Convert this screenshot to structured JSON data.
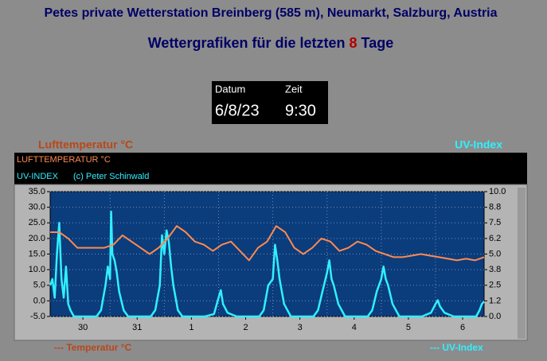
{
  "header": {
    "title": "Petes private Wetterstation Breinberg (585 m), Neumarkt, Salzburg, Austria",
    "subtitle_before": "Wettergrafiken für die letzten",
    "subtitle_days": "8",
    "subtitle_after": "Tage"
  },
  "datetime": {
    "date_label": "Datum",
    "time_label": "Zeit",
    "date": "6/8/23",
    "time": "9:30"
  },
  "chart_data": {
    "type": "line",
    "left_label": "Lufttemperatur °C",
    "right_label": "UV-Index",
    "credit": "(c) Peter Schinwald",
    "bottom_left_label": "--- Temperatur °C",
    "bottom_right_label": "--- UV-Index",
    "xlim": [
      0,
      192
    ],
    "xticks": [
      {
        "value": 14.5,
        "label": "30"
      },
      {
        "value": 38.5,
        "label": "31"
      },
      {
        "value": 62.5,
        "label": "1"
      },
      {
        "value": 86.5,
        "label": "2"
      },
      {
        "value": 110.5,
        "label": "3"
      },
      {
        "value": 134.5,
        "label": "4"
      },
      {
        "value": 158.5,
        "label": "5"
      },
      {
        "value": 182.5,
        "label": "6"
      }
    ],
    "xgrid": [
      26.5,
      50.5,
      74.5,
      98.5,
      122.5,
      146.5,
      170.5
    ],
    "ylim": [
      -5,
      35
    ],
    "yticks": [
      {
        "value": 35,
        "label": "35.0"
      },
      {
        "value": 30,
        "label": "30.0"
      },
      {
        "value": 25,
        "label": "25.0"
      },
      {
        "value": 20,
        "label": "20.0"
      },
      {
        "value": 15,
        "label": "15.0"
      },
      {
        "value": 10,
        "label": "10.0"
      },
      {
        "value": 5,
        "label": "5.0"
      },
      {
        "value": 0,
        "label": "0.0"
      },
      {
        "value": -5,
        "label": "-5.0"
      }
    ],
    "y2lim": [
      0,
      10
    ],
    "y2ticks": [
      {
        "value": 10,
        "label": "10.0"
      },
      {
        "value": 8.75,
        "label": "8.8"
      },
      {
        "value": 7.5,
        "label": "7.5"
      },
      {
        "value": 6.25,
        "label": "6.2"
      },
      {
        "value": 5,
        "label": "5.0"
      },
      {
        "value": 3.75,
        "label": "3.8"
      },
      {
        "value": 2.5,
        "label": "2.5"
      },
      {
        "value": 1.25,
        "label": "1.2"
      },
      {
        "value": 0,
        "label": "0.0"
      }
    ],
    "grid": true,
    "series": [
      {
        "name": "LUFTTEMPERATUR °C",
        "color": "#ff8a50",
        "x": [
          0,
          4,
          8,
          12,
          16,
          20,
          24,
          28,
          32,
          36,
          40,
          44,
          48,
          52,
          56,
          60,
          64,
          68,
          72,
          76,
          80,
          84,
          88,
          92,
          96,
          100,
          104,
          108,
          112,
          116,
          120,
          124,
          128,
          132,
          136,
          140,
          144,
          148,
          152,
          156,
          160,
          164,
          168,
          172,
          176,
          180,
          184,
          188,
          192
        ],
        "values": [
          22,
          22,
          20,
          17,
          17,
          17,
          17,
          18,
          21,
          19,
          17,
          15,
          17,
          20,
          24,
          22,
          19,
          18,
          16,
          18,
          19,
          16,
          13,
          17,
          19,
          24,
          22,
          17,
          15,
          17,
          20,
          19,
          16,
          17,
          19,
          18,
          16,
          15,
          14,
          14,
          14.5,
          15,
          14.5,
          14,
          13.5,
          13,
          13.5,
          13,
          14
        ]
      },
      {
        "name": "UV-INDEX",
        "color": "#30f0ff",
        "axis": "y2",
        "x": [
          0,
          1,
          2,
          3,
          4,
          5,
          6,
          7,
          8,
          9,
          10.5,
          20.5,
          22.5,
          24.5,
          25.5,
          26.5,
          27,
          27.5,
          28.5,
          29.5,
          30.5,
          32.5,
          34.5,
          44.5,
          46.5,
          48.5,
          49.5,
          50.5,
          51.5,
          52.5,
          53.5,
          54.5,
          56.5,
          58.5,
          68.5,
          72.5,
          74.5,
          75.5,
          76.5,
          78.5,
          82.5,
          92.5,
          94.5,
          96.5,
          98.5,
          99.5,
          100.5,
          101.5,
          103.5,
          106.5,
          116.5,
          118.5,
          120.5,
          122.5,
          123.5,
          124.5,
          125.5,
          127.5,
          130.5,
          140.5,
          142.5,
          144.5,
          146.5,
          147.5,
          148.5,
          149.5,
          151.5,
          154.5,
          164.5,
          168.5,
          170.5,
          171.5,
          172.5,
          174.5,
          178.5,
          188.5,
          190,
          191,
          192
        ],
        "values": [
          2.5,
          3,
          1.5,
          5,
          7.5,
          3,
          1.5,
          4,
          1,
          0.5,
          0,
          0,
          0.5,
          2.5,
          4,
          3,
          8.4,
          5,
          4.5,
          3.5,
          2,
          0.5,
          0,
          0,
          0.5,
          2.5,
          6.5,
          5,
          6.9,
          6,
          4,
          2.5,
          0.5,
          0,
          0,
          0.2,
          1.5,
          2.1,
          1,
          0.3,
          0,
          0,
          0.5,
          2.5,
          3,
          5.75,
          4.5,
          3,
          1,
          0,
          0,
          0.5,
          2,
          3.5,
          4.5,
          3,
          2.5,
          1,
          0,
          0,
          0.5,
          2,
          3,
          4,
          3,
          2.5,
          1,
          0,
          0,
          0.3,
          1,
          1.3,
          0.8,
          0.3,
          0,
          0,
          0.5,
          1,
          1.2
        ]
      }
    ]
  }
}
